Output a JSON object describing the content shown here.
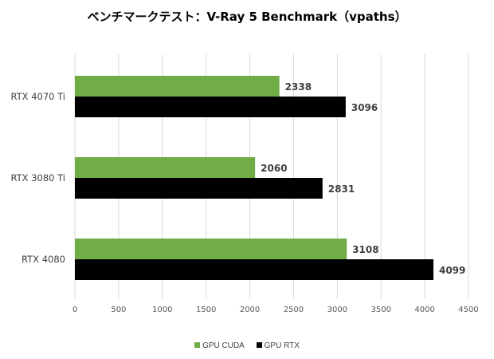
{
  "chart_data": {
    "type": "bar",
    "orientation": "horizontal",
    "title": "ベンチマークテスト：V-Ray 5 Benchmark（vpaths）",
    "categories": [
      "RTX 4070 Ti",
      "RTX 3080 Ti",
      "RTX 4080"
    ],
    "series": [
      {
        "name": "GPU CUDA",
        "color": "#70ad47",
        "values": [
          2338,
          2060,
          3108
        ]
      },
      {
        "name": "GPU RTX",
        "color": "#000000",
        "values": [
          3096,
          2831,
          4099
        ]
      }
    ],
    "xlim": [
      0,
      4500
    ],
    "xticks": [
      0,
      500,
      1000,
      1500,
      2000,
      2500,
      3000,
      3500,
      4000,
      4500
    ],
    "grid": true,
    "legend_position": "bottom",
    "data_labels": true
  }
}
